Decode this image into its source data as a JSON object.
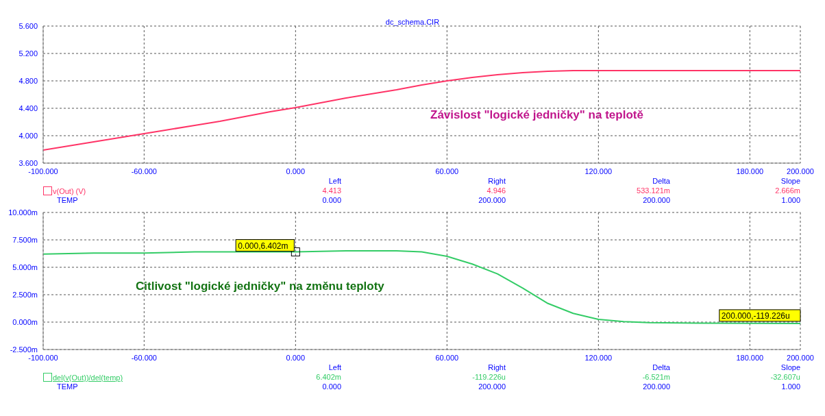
{
  "chart_data": [
    {
      "type": "line",
      "title": "dc_schema.CIR",
      "x": [
        -100,
        -90,
        -80,
        -70,
        -60,
        -50,
        -40,
        -30,
        -20,
        -10,
        0,
        10,
        20,
        30,
        40,
        50,
        60,
        70,
        80,
        90,
        100,
        110,
        120,
        140,
        160,
        180,
        200
      ],
      "series": [
        {
          "name": "v(Out) (V)",
          "color": "#ff3366",
          "values": [
            3.79,
            3.85,
            3.91,
            3.97,
            4.03,
            4.09,
            4.15,
            4.21,
            4.28,
            4.35,
            4.41,
            4.48,
            4.55,
            4.61,
            4.67,
            4.74,
            4.8,
            4.85,
            4.89,
            4.92,
            4.94,
            4.95,
            4.95,
            4.95,
            4.95,
            4.95,
            4.95
          ]
        }
      ],
      "xlim": [
        -100,
        200
      ],
      "xticks": [
        {
          "value": -100,
          "label": "-100.000"
        },
        {
          "value": -60,
          "label": "-60.000"
        },
        {
          "value": 0,
          "label": "0.000"
        },
        {
          "value": 60,
          "label": "60.000"
        },
        {
          "value": 120,
          "label": "120.000"
        },
        {
          "value": 180,
          "label": "180.000"
        },
        {
          "value": 200,
          "label": "200.000"
        }
      ],
      "ylim": [
        3.6,
        5.6
      ],
      "yticks": [
        {
          "value": 3.6,
          "label": "3.600"
        },
        {
          "value": 4.0,
          "label": "4.000"
        },
        {
          "value": 4.4,
          "label": "4.400"
        },
        {
          "value": 4.8,
          "label": "4.800"
        },
        {
          "value": 5.2,
          "label": "5.200"
        },
        {
          "value": 5.6,
          "label": "5.600"
        }
      ],
      "grid": true,
      "legend": "bottom left",
      "marker": "none",
      "line_style": "solid",
      "annotations": [
        "Závislost \"logické jedničky\" na teplotě",
        "Left",
        "Right",
        "Delta",
        "Slope",
        "4.413",
        "4.946",
        "533.121m",
        "2.666m",
        "TEMP",
        "0.000",
        "200.000",
        "200.000",
        "1.000"
      ]
    },
    {
      "type": "line",
      "x": [
        -100,
        -80,
        -60,
        -40,
        -20,
        0,
        20,
        40,
        50,
        60,
        70,
        80,
        90,
        100,
        110,
        120,
        130,
        140,
        160,
        180,
        200
      ],
      "series": [
        {
          "name": "del(v(Out))/del(temp)",
          "color": "#33cc66",
          "values": [
            6.2,
            6.3,
            6.3,
            6.4,
            6.4,
            6.4,
            6.5,
            6.5,
            6.4,
            6.0,
            5.3,
            4.4,
            3.1,
            1.7,
            0.8,
            0.25,
            0.05,
            -0.05,
            -0.1,
            -0.11,
            -0.12
          ]
        }
      ],
      "xlim": [
        -100,
        200
      ],
      "xticks": [
        {
          "value": -100,
          "label": "-100.000"
        },
        {
          "value": -60,
          "label": "-60.000"
        },
        {
          "value": 0,
          "label": "0.000"
        },
        {
          "value": 60,
          "label": "60.000"
        },
        {
          "value": 120,
          "label": "120.000"
        },
        {
          "value": 180,
          "label": "180.000"
        },
        {
          "value": 200,
          "label": "200.000"
        }
      ],
      "ylim": [
        -2.5,
        10
      ],
      "yticks": [
        {
          "value": -2.5,
          "label": "-2.500m"
        },
        {
          "value": 0,
          "label": "0.000m"
        },
        {
          "value": 2.5,
          "label": "2.500m"
        },
        {
          "value": 5,
          "label": "5.000m"
        },
        {
          "value": 7.5,
          "label": "7.500m"
        },
        {
          "value": 10,
          "label": "10.000m"
        }
      ],
      "grid": true,
      "legend": "bottom left",
      "marker": "none",
      "line_style": "solid",
      "annotations": [
        "Citlivost \"logické jedničky\" na změnu teploty",
        {
          "text": "0.000,6.402m",
          "x": 0,
          "y": 6.402
        },
        {
          "text": "200.000,-119.226u",
          "x": 200,
          "y": -0.119226
        },
        "Left",
        "Right",
        "Delta",
        "Slope",
        "6.402m",
        "-119.226u",
        "-6.521m",
        "-32.607u",
        "TEMP",
        "0.000",
        "200.000",
        "200.000",
        "1.000"
      ]
    }
  ]
}
